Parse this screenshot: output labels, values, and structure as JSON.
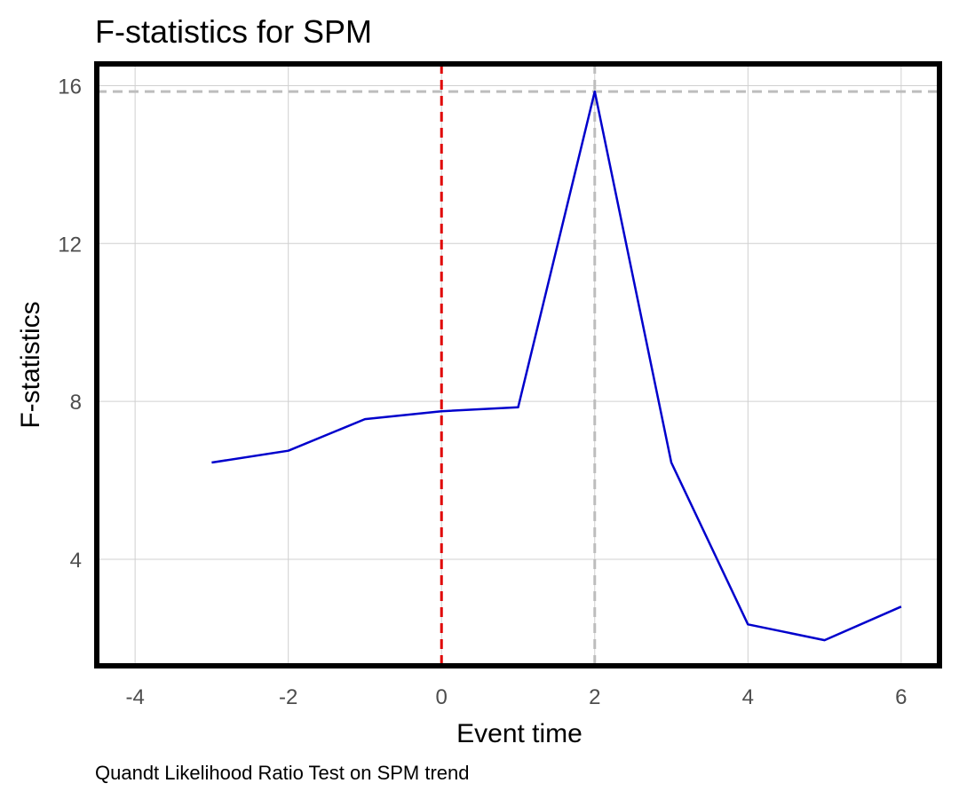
{
  "chart_data": {
    "type": "line",
    "title": "F-statistics for SPM",
    "xlabel": "Event time",
    "ylabel": "F-statistics",
    "caption": "Quandt Likelihood Ratio Test on SPM trend",
    "xlim": [
      -4.5,
      6.5
    ],
    "ylim": [
      1.3,
      16.55
    ],
    "x_ticks": [
      -4,
      -2,
      0,
      2,
      4,
      6
    ],
    "y_ticks": [
      4,
      8,
      12,
      16
    ],
    "grid": true,
    "series": [
      {
        "x": [
          -3,
          -2,
          -1,
          0,
          1,
          2,
          3,
          4,
          5,
          6
        ],
        "y": [
          6.45,
          6.75,
          7.55,
          7.75,
          7.85,
          15.85,
          6.45,
          2.35,
          1.95,
          2.8
        ],
        "color": "#0000cc"
      }
    ],
    "reference_lines": [
      {
        "orientation": "vertical",
        "value": 0,
        "color": "#e00000",
        "style": "dashed"
      },
      {
        "orientation": "vertical",
        "value": 2,
        "color": "#bdbdbd",
        "style": "dashed"
      },
      {
        "orientation": "horizontal",
        "value": 15.85,
        "color": "#bdbdbd",
        "style": "dashed"
      }
    ]
  }
}
